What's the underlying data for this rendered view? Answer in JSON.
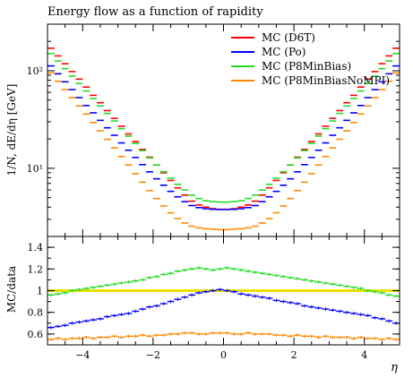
{
  "chart_data": [
    {
      "type": "line",
      "title": "Energy flow as a function of rapidity",
      "ylabel": "1/N, dE/dη [GeV]",
      "yscale": "log",
      "xlim": [
        -5,
        5
      ],
      "ylim": [
        2,
        300
      ],
      "yticks": [
        {
          "value": 10,
          "label": "10¹"
        },
        {
          "value": 100,
          "label": "10²"
        }
      ],
      "legend_position": "top-right",
      "legend": [
        {
          "label": "MC (D6T)",
          "color": "#ff0000"
        },
        {
          "label": "MC (Po)",
          "color": "#0000ff"
        },
        {
          "label": "MC (P8MinBias)",
          "color": "#22dd22"
        },
        {
          "label": "MC (P8MinBiasNoMPI)",
          "color": "#ff8800"
        }
      ],
      "series": [
        {
          "name": "MC (D6T)",
          "color": "#ff0000",
          "x": [
            -4.9,
            -4.7,
            -4.5,
            -4.3,
            -4.1,
            -3.9,
            -3.7,
            -3.5,
            -3.3,
            -3.1,
            -2.9,
            -2.7,
            -2.5,
            -2.3,
            -2.1,
            -1.9,
            -1.7,
            -1.5,
            -1.3,
            -1.1,
            -0.9,
            -0.7,
            -0.5,
            -0.3,
            -0.1,
            0.1,
            0.3,
            0.5,
            0.7,
            0.9,
            1.1,
            1.3,
            1.5,
            1.7,
            1.9,
            2.1,
            2.3,
            2.5,
            2.7,
            2.9,
            3.1,
            3.3,
            3.5,
            3.7,
            3.9,
            4.1,
            4.3,
            4.5,
            4.7,
            4.9
          ],
          "y": [
            170,
            142,
            118,
            98,
            82,
            68,
            56,
            47,
            39,
            32.5,
            27,
            22.5,
            18.8,
            15.6,
            13,
            10.8,
            9.0,
            7.5,
            6.3,
            5.3,
            4.6,
            4.2,
            4.0,
            3.85,
            3.8,
            3.8,
            3.85,
            4.0,
            4.2,
            4.6,
            5.3,
            6.3,
            7.5,
            9.0,
            10.8,
            13,
            15.6,
            18.8,
            22.5,
            27,
            32.5,
            39,
            47,
            56,
            68,
            82,
            98,
            118,
            142,
            170
          ]
        },
        {
          "name": "MC (Po)",
          "color": "#0000ff",
          "x": [
            -4.9,
            -4.7,
            -4.5,
            -4.3,
            -4.1,
            -3.9,
            -3.7,
            -3.5,
            -3.3,
            -3.1,
            -2.9,
            -2.7,
            -2.5,
            -2.3,
            -2.1,
            -1.9,
            -1.7,
            -1.5,
            -1.3,
            -1.1,
            -0.9,
            -0.7,
            -0.5,
            -0.3,
            -0.1,
            0.1,
            0.3,
            0.5,
            0.7,
            0.9,
            1.1,
            1.3,
            1.5,
            1.7,
            1.9,
            2.1,
            2.3,
            2.5,
            2.7,
            2.9,
            3.1,
            3.3,
            3.5,
            3.7,
            3.9,
            4.1,
            4.3,
            4.5,
            4.7,
            4.9
          ],
          "y": [
            112,
            93,
            77,
            64,
            53,
            44,
            37,
            31,
            26,
            21.8,
            18.2,
            15.3,
            12.9,
            10.9,
            9.2,
            7.8,
            6.7,
            5.8,
            5.1,
            4.55,
            4.15,
            3.95,
            3.85,
            3.8,
            3.78,
            3.78,
            3.8,
            3.85,
            3.95,
            4.15,
            4.55,
            5.1,
            5.8,
            6.7,
            7.8,
            9.2,
            10.9,
            12.9,
            15.3,
            18.2,
            21.8,
            26,
            31,
            37,
            44,
            53,
            64,
            77,
            93,
            112
          ]
        },
        {
          "name": "MC (P8MinBias)",
          "color": "#22dd22",
          "x": [
            -4.9,
            -4.7,
            -4.5,
            -4.3,
            -4.1,
            -3.9,
            -3.7,
            -3.5,
            -3.3,
            -3.1,
            -2.9,
            -2.7,
            -2.5,
            -2.3,
            -2.1,
            -1.9,
            -1.7,
            -1.5,
            -1.3,
            -1.1,
            -0.9,
            -0.7,
            -0.5,
            -0.3,
            -0.1,
            0.1,
            0.3,
            0.5,
            0.7,
            0.9,
            1.1,
            1.3,
            1.5,
            1.7,
            1.9,
            2.1,
            2.3,
            2.5,
            2.7,
            2.9,
            3.1,
            3.3,
            3.5,
            3.7,
            3.9,
            4.1,
            4.3,
            4.5,
            4.7,
            4.9
          ],
          "y": [
            150,
            126,
            105,
            88,
            74,
            62,
            52,
            43.5,
            36.5,
            30.5,
            25.5,
            21.4,
            18,
            15.2,
            12.8,
            10.8,
            9.2,
            7.9,
            6.85,
            6.0,
            5.3,
            4.9,
            4.65,
            4.55,
            4.5,
            4.5,
            4.55,
            4.65,
            4.9,
            5.3,
            6.0,
            6.85,
            7.9,
            9.2,
            10.8,
            12.8,
            15.2,
            18,
            21.4,
            25.5,
            30.5,
            36.5,
            43.5,
            52,
            62,
            74,
            88,
            105,
            126,
            150
          ]
        },
        {
          "name": "MC (P8MinBiasNoMPI)",
          "color": "#ff8800",
          "x": [
            -4.9,
            -4.7,
            -4.5,
            -4.3,
            -4.1,
            -3.9,
            -3.7,
            -3.5,
            -3.3,
            -3.1,
            -2.9,
            -2.7,
            -2.5,
            -2.3,
            -2.1,
            -1.9,
            -1.7,
            -1.5,
            -1.3,
            -1.1,
            -0.9,
            -0.7,
            -0.5,
            -0.3,
            -0.1,
            0.1,
            0.3,
            0.5,
            0.7,
            0.9,
            1.1,
            1.3,
            1.5,
            1.7,
            1.9,
            2.1,
            2.3,
            2.5,
            2.7,
            2.9,
            3.1,
            3.3,
            3.5,
            3.7,
            3.9,
            4.1,
            4.3,
            4.5,
            4.7,
            4.9
          ],
          "y": [
            95,
            78,
            64,
            53,
            43.5,
            36,
            29.5,
            24.2,
            19.8,
            16.2,
            13.2,
            10.8,
            8.8,
            7.2,
            5.9,
            4.9,
            4.1,
            3.5,
            3.05,
            2.75,
            2.55,
            2.45,
            2.4,
            2.38,
            2.35,
            2.35,
            2.38,
            2.4,
            2.45,
            2.55,
            2.75,
            3.05,
            3.5,
            4.1,
            4.9,
            5.9,
            7.2,
            8.8,
            10.8,
            13.2,
            16.2,
            19.8,
            24.2,
            29.5,
            36,
            43.5,
            53,
            64,
            78,
            95
          ]
        }
      ]
    },
    {
      "type": "line",
      "xlabel": "η",
      "ylabel": "MC/data",
      "xlim": [
        -5,
        5
      ],
      "ylim": [
        0.5,
        1.5
      ],
      "xticks": [
        -4,
        -2,
        0,
        2,
        4
      ],
      "yticks": [
        0.6,
        0.8,
        1,
        1.2,
        1.4
      ],
      "reference_line": {
        "value": 1,
        "color": "#e8e000"
      },
      "series": [
        {
          "name": "MC (D6T)",
          "color": "#ff0000",
          "x": [
            -4.9,
            -4.7,
            -4.5,
            -4.3,
            -4.1,
            -3.9,
            -3.7,
            -3.5,
            -3.3,
            -3.1,
            -2.9,
            -2.7,
            -2.5,
            -2.3,
            -2.1,
            -1.9,
            -1.7,
            -1.5,
            -1.3,
            -1.1,
            -0.9,
            -0.7,
            -0.5,
            -0.3,
            -0.1,
            0.1,
            0.3,
            0.5,
            0.7,
            0.9,
            1.1,
            1.3,
            1.5,
            1.7,
            1.9,
            2.1,
            2.3,
            2.5,
            2.7,
            2.9,
            3.1,
            3.3,
            3.5,
            3.7,
            3.9,
            4.1,
            4.3,
            4.5,
            4.7,
            4.9
          ],
          "y": [
            1,
            1,
            1,
            1,
            1,
            1,
            1,
            1,
            1,
            1,
            1,
            1,
            1,
            1,
            1,
            1,
            1,
            1,
            1,
            1,
            1,
            1,
            1,
            1,
            1,
            1,
            1,
            1,
            1,
            1,
            1,
            1,
            1,
            1,
            1,
            1,
            1,
            1,
            1,
            1,
            1,
            1,
            1,
            1,
            1,
            1,
            1,
            1,
            1,
            1
          ]
        },
        {
          "name": "MC (Po)",
          "color": "#0000ff",
          "x": [
            -4.9,
            -4.7,
            -4.5,
            -4.3,
            -4.1,
            -3.9,
            -3.7,
            -3.5,
            -3.3,
            -3.1,
            -2.9,
            -2.7,
            -2.5,
            -2.3,
            -2.1,
            -1.9,
            -1.7,
            -1.5,
            -1.3,
            -1.1,
            -0.9,
            -0.7,
            -0.5,
            -0.3,
            -0.1,
            0.1,
            0.3,
            0.5,
            0.7,
            0.9,
            1.1,
            1.3,
            1.5,
            1.7,
            1.9,
            2.1,
            2.3,
            2.5,
            2.7,
            2.9,
            3.1,
            3.3,
            3.5,
            3.7,
            3.9,
            4.1,
            4.3,
            4.5,
            4.7,
            4.9
          ],
          "y": [
            0.66,
            0.67,
            0.68,
            0.7,
            0.71,
            0.72,
            0.73,
            0.74,
            0.76,
            0.77,
            0.78,
            0.79,
            0.81,
            0.83,
            0.85,
            0.86,
            0.88,
            0.9,
            0.92,
            0.94,
            0.96,
            0.98,
            0.99,
            1.0,
            1.01,
            1.0,
            0.99,
            0.97,
            0.96,
            0.95,
            0.94,
            0.93,
            0.91,
            0.9,
            0.89,
            0.88,
            0.86,
            0.85,
            0.84,
            0.83,
            0.82,
            0.81,
            0.8,
            0.79,
            0.78,
            0.77,
            0.75,
            0.74,
            0.72,
            0.7
          ]
        },
        {
          "name": "MC (P8MinBias)",
          "color": "#22dd22",
          "x": [
            -4.9,
            -4.7,
            -4.5,
            -4.3,
            -4.1,
            -3.9,
            -3.7,
            -3.5,
            -3.3,
            -3.1,
            -2.9,
            -2.7,
            -2.5,
            -2.3,
            -2.1,
            -1.9,
            -1.7,
            -1.5,
            -1.3,
            -1.1,
            -0.9,
            -0.7,
            -0.5,
            -0.3,
            -0.1,
            0.1,
            0.3,
            0.5,
            0.7,
            0.9,
            1.1,
            1.3,
            1.5,
            1.7,
            1.9,
            2.1,
            2.3,
            2.5,
            2.7,
            2.9,
            3.1,
            3.3,
            3.5,
            3.7,
            3.9,
            4.1,
            4.3,
            4.5,
            4.7,
            4.9
          ],
          "y": [
            0.96,
            0.97,
            0.98,
            1.0,
            1.01,
            1.02,
            1.03,
            1.04,
            1.05,
            1.06,
            1.07,
            1.08,
            1.09,
            1.1,
            1.12,
            1.13,
            1.15,
            1.16,
            1.18,
            1.19,
            1.2,
            1.21,
            1.2,
            1.19,
            1.2,
            1.21,
            1.2,
            1.19,
            1.18,
            1.17,
            1.16,
            1.15,
            1.14,
            1.13,
            1.12,
            1.11,
            1.1,
            1.09,
            1.08,
            1.07,
            1.06,
            1.05,
            1.04,
            1.03,
            1.02,
            1.0,
            0.99,
            0.98,
            0.96,
            0.95
          ]
        },
        {
          "name": "MC (P8MinBiasNoMPI)",
          "color": "#ff8800",
          "x": [
            -4.9,
            -4.7,
            -4.5,
            -4.3,
            -4.1,
            -3.9,
            -3.7,
            -3.5,
            -3.3,
            -3.1,
            -2.9,
            -2.7,
            -2.5,
            -2.3,
            -2.1,
            -1.9,
            -1.7,
            -1.5,
            -1.3,
            -1.1,
            -0.9,
            -0.7,
            -0.5,
            -0.3,
            -0.1,
            0.1,
            0.3,
            0.5,
            0.7,
            0.9,
            1.1,
            1.3,
            1.5,
            1.7,
            1.9,
            2.1,
            2.3,
            2.5,
            2.7,
            2.9,
            3.1,
            3.3,
            3.5,
            3.7,
            3.9,
            4.1,
            4.3,
            4.5,
            4.7,
            4.9
          ],
          "y": [
            0.55,
            0.56,
            0.55,
            0.56,
            0.56,
            0.57,
            0.56,
            0.57,
            0.57,
            0.58,
            0.57,
            0.58,
            0.58,
            0.59,
            0.58,
            0.59,
            0.59,
            0.6,
            0.6,
            0.61,
            0.61,
            0.6,
            0.6,
            0.61,
            0.61,
            0.61,
            0.6,
            0.6,
            0.61,
            0.6,
            0.6,
            0.6,
            0.59,
            0.59,
            0.58,
            0.59,
            0.58,
            0.58,
            0.57,
            0.58,
            0.57,
            0.57,
            0.57,
            0.56,
            0.57,
            0.56,
            0.56,
            0.55,
            0.56,
            0.55
          ]
        }
      ]
    }
  ]
}
